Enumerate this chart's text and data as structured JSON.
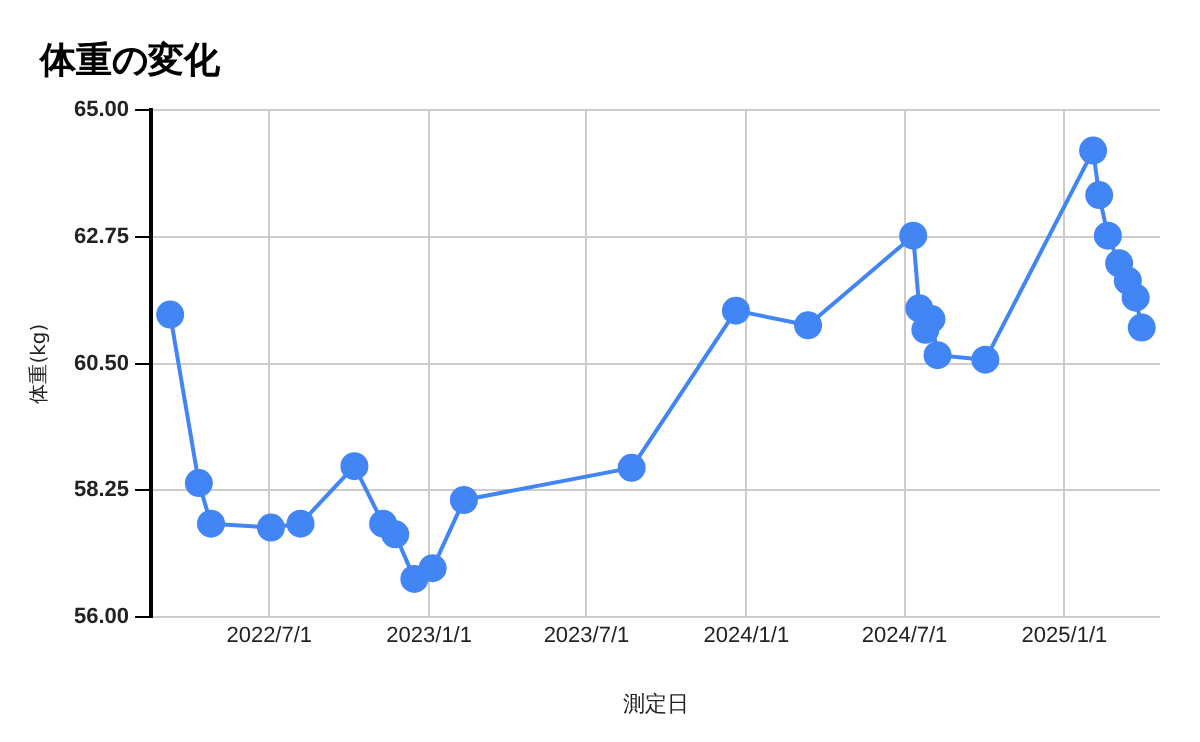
{
  "chart_data": {
    "type": "line",
    "title": "体重の変化",
    "xlabel": "測定日",
    "ylabel": "体重(kg)",
    "x": [
      "2022-03-09",
      "2022-04-11",
      "2022-04-25",
      "2022-07-03",
      "2022-08-06",
      "2022-10-07",
      "2022-11-09",
      "2022-11-23",
      "2022-12-15",
      "2023-01-05",
      "2023-02-10",
      "2023-08-22",
      "2023-12-20",
      "2024-03-12",
      "2024-07-11",
      "2024-07-18",
      "2024-07-25",
      "2024-08-01",
      "2024-08-08",
      "2024-10-02",
      "2025-02-03",
      "2025-02-10",
      "2025-02-20",
      "2025-03-05",
      "2025-03-15",
      "2025-03-24",
      "2025-03-31"
    ],
    "series": [
      {
        "color": "#4285f4",
        "values": [
          61.37,
          58.38,
          57.66,
          57.59,
          57.66,
          58.68,
          57.66,
          57.47,
          56.68,
          56.87,
          58.08,
          58.65,
          61.44,
          61.18,
          62.77,
          61.48,
          61.1,
          61.29,
          60.65,
          60.57,
          64.28,
          63.49,
          62.77,
          62.28,
          61.97,
          61.67,
          61.14
        ]
      }
    ],
    "xlim": [
      "2022-02-15",
      "2025-04-21"
    ],
    "xticks": [
      {
        "value": "2022-07-01",
        "label": "2022/7/1"
      },
      {
        "value": "2023-01-01",
        "label": "2023/1/1"
      },
      {
        "value": "2023-07-01",
        "label": "2023/7/1"
      },
      {
        "value": "2024-01-01",
        "label": "2024/1/1"
      },
      {
        "value": "2024-07-01",
        "label": "2024/7/1"
      },
      {
        "value": "2025-01-01",
        "label": "2025/1/1"
      }
    ],
    "ylim": [
      56,
      65
    ],
    "yticks": [
      {
        "value": 56,
        "label": "56.00"
      },
      {
        "value": 58.25,
        "label": "58.25"
      },
      {
        "value": 60.5,
        "label": "60.50"
      },
      {
        "value": 62.75,
        "label": "62.75"
      },
      {
        "value": 65,
        "label": "65.00"
      }
    ],
    "grid": true,
    "legend": false,
    "marker": "circle",
    "line_style": "solid"
  }
}
